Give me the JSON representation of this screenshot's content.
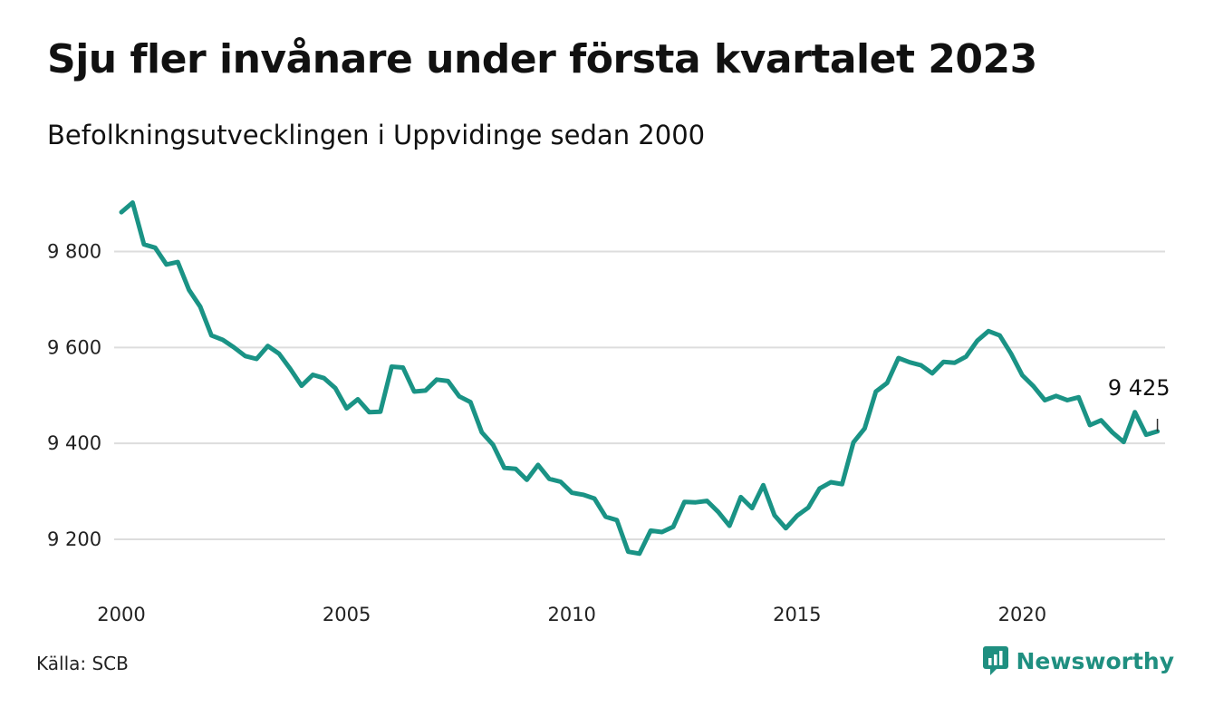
{
  "header": {
    "title": "Sju fler invånare under första kvartalet 2023",
    "subtitle": "Befolkningsutvecklingen i Uppvidinge sedan 2000"
  },
  "footer": {
    "source": "Källa: SCB",
    "brand": "Newsworthy"
  },
  "colors": {
    "line": "#1a9385",
    "grid": "#dddddd",
    "brand": "#1f8f80"
  },
  "chart_data": {
    "type": "line",
    "title": "Sju fler invånare under första kvartalet 2023",
    "subtitle": "Befolkningsutvecklingen i Uppvidinge sedan 2000",
    "xlabel": "",
    "ylabel": "",
    "x_ticks": [
      2000,
      2005,
      2010,
      2015,
      2020
    ],
    "y_ticks": [
      9200,
      9400,
      9600,
      9800
    ],
    "y_tick_labels": [
      "9 200",
      "9 400",
      "9 600",
      "9 800"
    ],
    "xlim": [
      2000,
      2023.25
    ],
    "ylim": [
      9130,
      9920
    ],
    "grid": "horizontal",
    "legend": "none",
    "end_label": "9 425",
    "x_start": 2000,
    "x_step": 0.25,
    "values": [
      9882,
      9902,
      9815,
      9808,
      9773,
      9778,
      9720,
      9685,
      9625,
      9616,
      9600,
      9582,
      9576,
      9603,
      9587,
      9555,
      9520,
      9543,
      9536,
      9515,
      9473,
      9492,
      9465,
      9466,
      9560,
      9558,
      9508,
      9510,
      9533,
      9530,
      9498,
      9486,
      9423,
      9397,
      9349,
      9347,
      9324,
      9355,
      9326,
      9320,
      9297,
      9293,
      9285,
      9247,
      9240,
      9174,
      9170,
      9218,
      9215,
      9226,
      9278,
      9277,
      9280,
      9257,
      9228,
      9288,
      9265,
      9313,
      9250,
      9223,
      9249,
      9266,
      9306,
      9319,
      9315,
      9402,
      9431,
      9508,
      9526,
      9578,
      9569,
      9563,
      9546,
      9570,
      9568,
      9581,
      9614,
      9634,
      9625,
      9587,
      9542,
      9519,
      9490,
      9499,
      9490,
      9496,
      9438,
      9448,
      9423,
      9403,
      9465,
      9418,
      9425
    ]
  }
}
